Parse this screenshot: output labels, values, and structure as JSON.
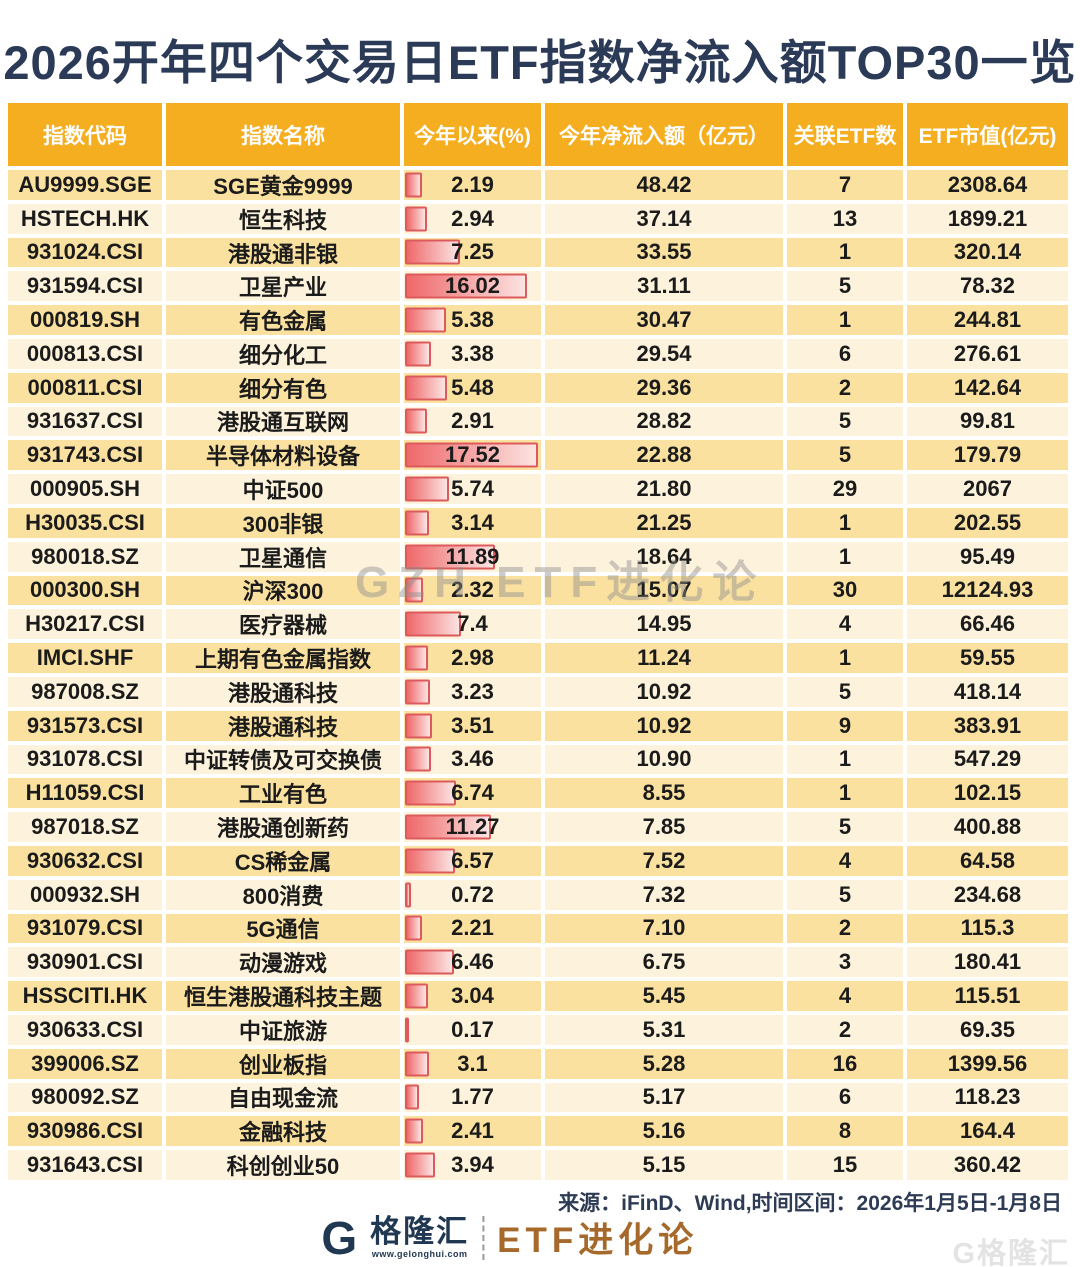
{
  "title": "2026开年四个交易日ETF指数净流入额TOP30一览",
  "watermark": "GZH ETF进化论",
  "chart_data": {
    "type": "table",
    "title": "2026开年四个交易日ETF指数净流入额TOP30一览",
    "bar_column": "今年以来(%)",
    "bar_range": [
      0,
      17.52
    ],
    "columns": [
      "指数代码",
      "指数名称",
      "今年以来(%)",
      "今年净流入额（亿元）",
      "关联ETF数",
      "ETF市值(亿元)"
    ],
    "rows": [
      {
        "code": "AU9999.SGE",
        "name": "SGE黄金9999",
        "ytd": "2.19",
        "inflow": "48.42",
        "etf_count": "7",
        "market_cap": "2308.64"
      },
      {
        "code": "HSTECH.HK",
        "name": "恒生科技",
        "ytd": "2.94",
        "inflow": "37.14",
        "etf_count": "13",
        "market_cap": "1899.21"
      },
      {
        "code": "931024.CSI",
        "name": "港股通非银",
        "ytd": "7.25",
        "inflow": "33.55",
        "etf_count": "1",
        "market_cap": "320.14"
      },
      {
        "code": "931594.CSI",
        "name": "卫星产业",
        "ytd": "16.02",
        "inflow": "31.11",
        "etf_count": "5",
        "market_cap": "78.32"
      },
      {
        "code": "000819.SH",
        "name": "有色金属",
        "ytd": "5.38",
        "inflow": "30.47",
        "etf_count": "1",
        "market_cap": "244.81"
      },
      {
        "code": "000813.CSI",
        "name": "细分化工",
        "ytd": "3.38",
        "inflow": "29.54",
        "etf_count": "6",
        "market_cap": "276.61"
      },
      {
        "code": "000811.CSI",
        "name": "细分有色",
        "ytd": "5.48",
        "inflow": "29.36",
        "etf_count": "2",
        "market_cap": "142.64"
      },
      {
        "code": "931637.CSI",
        "name": "港股通互联网",
        "ytd": "2.91",
        "inflow": "28.82",
        "etf_count": "5",
        "market_cap": "99.81"
      },
      {
        "code": "931743.CSI",
        "name": "半导体材料设备",
        "ytd": "17.52",
        "inflow": "22.88",
        "etf_count": "5",
        "market_cap": "179.79"
      },
      {
        "code": "000905.SH",
        "name": "中证500",
        "ytd": "5.74",
        "inflow": "21.80",
        "etf_count": "29",
        "market_cap": "2067"
      },
      {
        "code": "H30035.CSI",
        "name": "300非银",
        "ytd": "3.14",
        "inflow": "21.25",
        "etf_count": "1",
        "market_cap": "202.55"
      },
      {
        "code": "980018.SZ",
        "name": "卫星通信",
        "ytd": "11.89",
        "inflow": "18.64",
        "etf_count": "1",
        "market_cap": "95.49"
      },
      {
        "code": "000300.SH",
        "name": "沪深300",
        "ytd": "2.32",
        "inflow": "15.07",
        "etf_count": "30",
        "market_cap": "12124.93"
      },
      {
        "code": "H30217.CSI",
        "name": "医疗器械",
        "ytd": "7.4",
        "inflow": "14.95",
        "etf_count": "4",
        "market_cap": "66.46"
      },
      {
        "code": "IMCI.SHF",
        "name": "上期有色金属指数",
        "ytd": "2.98",
        "inflow": "11.24",
        "etf_count": "1",
        "market_cap": "59.55"
      },
      {
        "code": "987008.SZ",
        "name": "港股通科技",
        "ytd": "3.23",
        "inflow": "10.92",
        "etf_count": "5",
        "market_cap": "418.14"
      },
      {
        "code": "931573.CSI",
        "name": "港股通科技",
        "ytd": "3.51",
        "inflow": "10.92",
        "etf_count": "9",
        "market_cap": "383.91"
      },
      {
        "code": "931078.CSI",
        "name": "中证转债及可交换债",
        "ytd": "3.46",
        "inflow": "10.90",
        "etf_count": "1",
        "market_cap": "547.29"
      },
      {
        "code": "H11059.CSI",
        "name": "工业有色",
        "ytd": "6.74",
        "inflow": "8.55",
        "etf_count": "1",
        "market_cap": "102.15"
      },
      {
        "code": "987018.SZ",
        "name": "港股通创新药",
        "ytd": "11.27",
        "inflow": "7.85",
        "etf_count": "5",
        "market_cap": "400.88"
      },
      {
        "code": "930632.CSI",
        "name": "CS稀金属",
        "ytd": "6.57",
        "inflow": "7.52",
        "etf_count": "4",
        "market_cap": "64.58"
      },
      {
        "code": "000932.SH",
        "name": "800消费",
        "ytd": "0.72",
        "inflow": "7.32",
        "etf_count": "5",
        "market_cap": "234.68"
      },
      {
        "code": "931079.CSI",
        "name": "5G通信",
        "ytd": "2.21",
        "inflow": "7.10",
        "etf_count": "2",
        "market_cap": "115.3"
      },
      {
        "code": "930901.CSI",
        "name": "动漫游戏",
        "ytd": "6.46",
        "inflow": "6.75",
        "etf_count": "3",
        "market_cap": "180.41"
      },
      {
        "code": "HSSCITI.HK",
        "name": "恒生港股通科技主题",
        "ytd": "3.04",
        "inflow": "5.45",
        "etf_count": "4",
        "market_cap": "115.51"
      },
      {
        "code": "930633.CSI",
        "name": "中证旅游",
        "ytd": "0.17",
        "inflow": "5.31",
        "etf_count": "2",
        "market_cap": "69.35"
      },
      {
        "code": "399006.SZ",
        "name": "创业板指",
        "ytd": "3.1",
        "inflow": "5.28",
        "etf_count": "16",
        "market_cap": "1399.56"
      },
      {
        "code": "980092.SZ",
        "name": "自由现金流",
        "ytd": "1.77",
        "inflow": "5.17",
        "etf_count": "6",
        "market_cap": "118.23"
      },
      {
        "code": "930986.CSI",
        "name": "金融科技",
        "ytd": "2.41",
        "inflow": "5.16",
        "etf_count": "8",
        "market_cap": "164.4"
      },
      {
        "code": "931643.CSI",
        "name": "科创创业50",
        "ytd": "3.94",
        "inflow": "5.15",
        "etf_count": "15",
        "market_cap": "360.42"
      }
    ]
  },
  "footer": {
    "source": "来源：iFinD、Wind,时间区间：2026年1月5日-1月8日",
    "brand_mark": "G",
    "brand_name": "格隆汇",
    "brand_url": "www.gelonghui.com",
    "brand_series": "ETF进化论",
    "corner_watermark": "G格隆汇"
  },
  "colors": {
    "title_navy": "#2b3a56",
    "header_orange": "#f4ae20",
    "row_odd": "#fae1a0",
    "row_even": "#fdf3dc",
    "bar_border": "#dd5a5c",
    "bar_fill_start": "#ef686a",
    "bar_fill_end": "#fbe4e2",
    "brand_navy": "#203852",
    "brand_bronze": "#a5692b"
  }
}
